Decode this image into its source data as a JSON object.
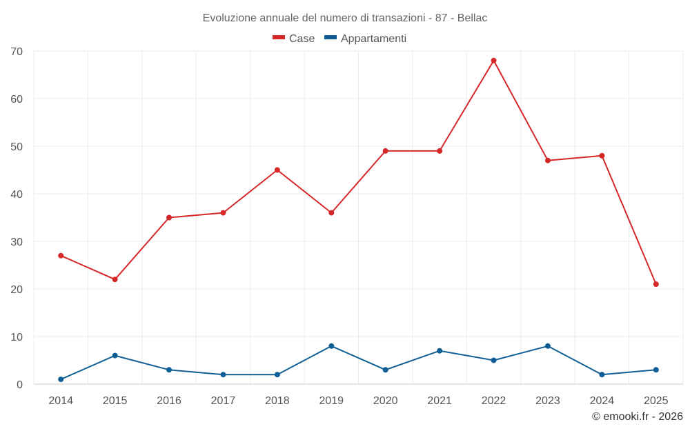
{
  "chart_data": {
    "type": "line",
    "title": "Evoluzione annuale del numero di transazioni - 87 - Bellac",
    "categories": [
      "2014",
      "2015",
      "2016",
      "2017",
      "2018",
      "2019",
      "2020",
      "2021",
      "2022",
      "2023",
      "2024",
      "2025"
    ],
    "series": [
      {
        "name": "Case",
        "color": "#d62728",
        "values": [
          27,
          22,
          35,
          36,
          45,
          36,
          49,
          49,
          68,
          47,
          48,
          21
        ]
      },
      {
        "name": "Appartamenti",
        "color": "#0f5f96",
        "values": [
          1,
          6,
          3,
          2,
          2,
          8,
          3,
          7,
          5,
          8,
          2,
          3
        ]
      }
    ],
    "ylim": [
      0,
      70
    ],
    "yticks": [
      0,
      10,
      20,
      30,
      40,
      50,
      60,
      70
    ],
    "grid": true,
    "legend_position": "top-center",
    "xlabel": "",
    "ylabel": ""
  },
  "credit": "© emooki.fr - 2026"
}
